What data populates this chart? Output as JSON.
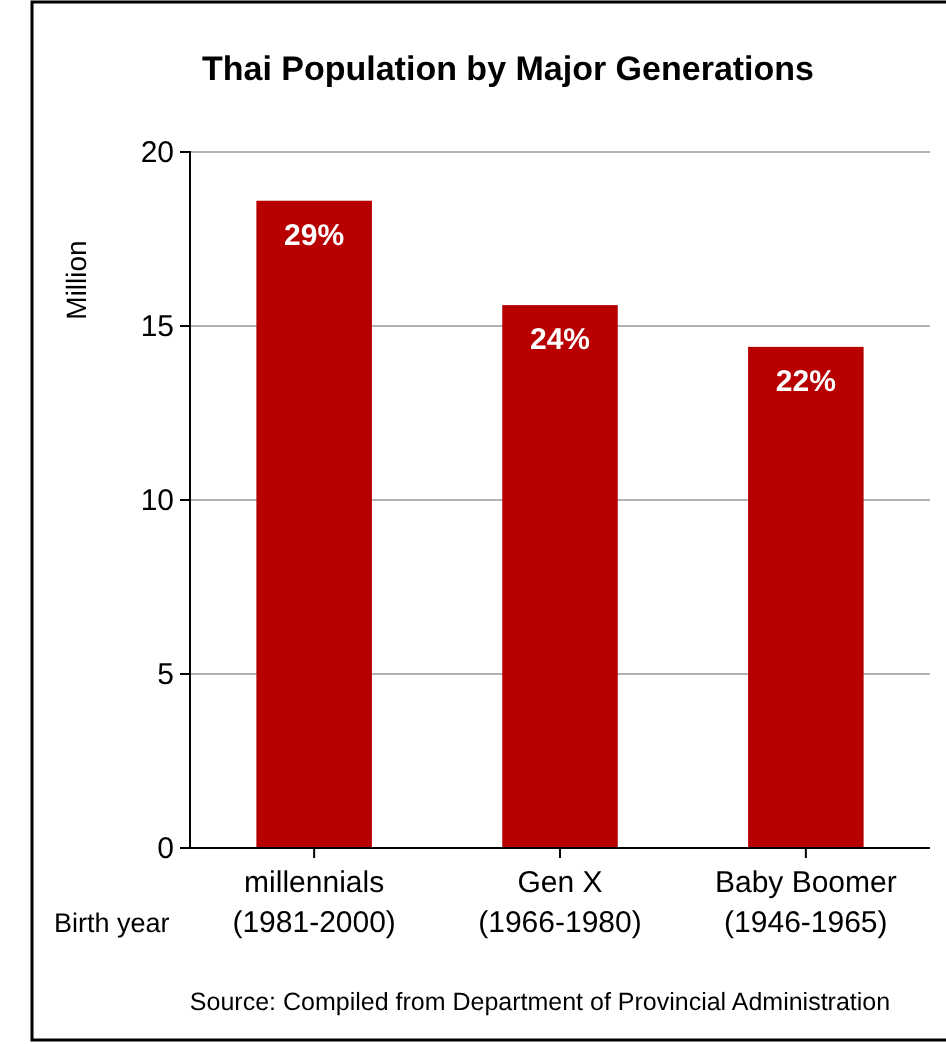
{
  "chart_data": {
    "type": "bar",
    "title": "Thai Population by Major Generations",
    "ylabel": "Million",
    "categories": [
      "millennials\n(1981-2000)",
      "Gen X\n(1966-1980)",
      "Baby Boomer\n(1946-1965)"
    ],
    "values": [
      18.6,
      15.6,
      14.4
    ],
    "color": "#b80000",
    "ylim": [
      0,
      20
    ],
    "yticks": [
      0,
      5,
      10,
      15,
      20
    ],
    "grid": "y",
    "annotations": [
      "Birth year",
      "Source: Compiled from Department of Provincial Administration",
      {
        "text": "29%",
        "x": "millennials\n(1981-2000)",
        "y": 18.6
      },
      {
        "text": "24%",
        "x": "Gen X\n(1966-1980)",
        "y": 15.6
      },
      {
        "text": "22%",
        "x": "Baby Boomer\n(1946-1965)",
        "y": 14.4
      }
    ]
  }
}
